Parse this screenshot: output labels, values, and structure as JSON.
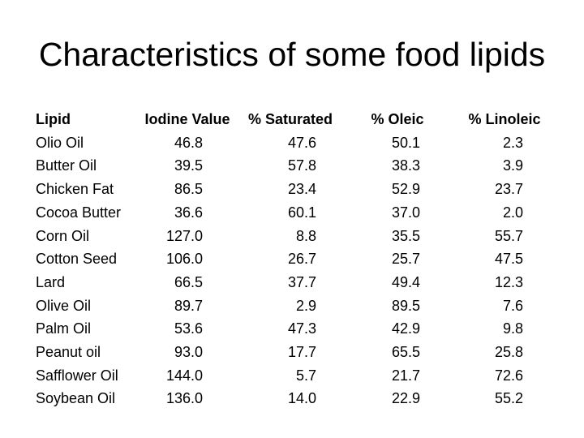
{
  "slide": {
    "background_color": "#ffffff",
    "text_color": "#000000"
  },
  "chart_data": {
    "type": "table",
    "title": "Characteristics of some food lipids",
    "columns": [
      "Lipid",
      "Iodine Value",
      "% Saturated",
      "% Oleic",
      "% Linoleic"
    ],
    "rows": [
      [
        "Olio Oil",
        "46.8",
        "47.6",
        "50.1",
        "2.3"
      ],
      [
        "Butter Oil",
        "39.5",
        "57.8",
        "38.3",
        "3.9"
      ],
      [
        "Chicken Fat",
        "86.5",
        "23.4",
        "52.9",
        "23.7"
      ],
      [
        "Cocoa Butter",
        "36.6",
        "60.1",
        "37.0",
        "2.0"
      ],
      [
        "Corn Oil",
        "127.0",
        "8.8",
        "35.5",
        "55.7"
      ],
      [
        "Cotton Seed",
        "106.0",
        "26.7",
        "25.7",
        "47.5"
      ],
      [
        "Lard",
        "66.5",
        "37.7",
        "49.4",
        "12.3"
      ],
      [
        "Olive Oil",
        "89.7",
        "2.9",
        "89.5",
        "7.6"
      ],
      [
        "Palm Oil",
        "53.6",
        "47.3",
        "42.9",
        "9.8"
      ],
      [
        "Peanut oil",
        "93.0",
        "17.7",
        "65.5",
        "25.8"
      ],
      [
        "Safflower Oil",
        "144.0",
        "5.7",
        "21.7",
        "72.6"
      ],
      [
        "Soybean Oil",
        "136.0",
        "14.0",
        "22.9",
        "55.2"
      ]
    ],
    "layout": {
      "numeric_alignment": "right",
      "header_style": "bold",
      "grid": "none",
      "legend": "none"
    }
  }
}
